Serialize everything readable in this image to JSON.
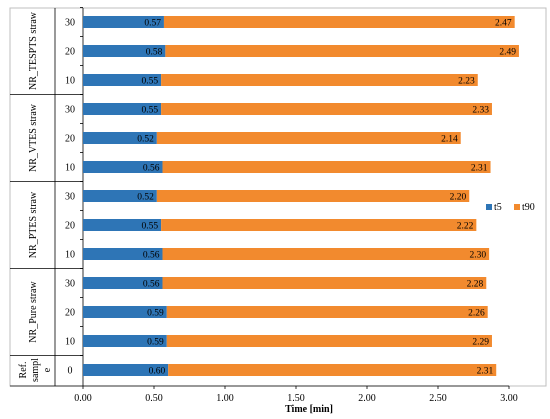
{
  "chart_data": {
    "type": "bar",
    "orientation": "horizontal",
    "stacked": true,
    "title": "",
    "xlabel": "Time [min]",
    "ylabel": "",
    "xlim": [
      0,
      3.0
    ],
    "x_ticks": [
      "0.00",
      "0.50",
      "1.00",
      "1.50",
      "2.00",
      "2.50",
      "3.00"
    ],
    "grid": false,
    "legend_position": "right",
    "groups": [
      {
        "label": "NR_TESPTS straw",
        "rows": [
          {
            "category": "30",
            "t5": 0.57,
            "t90": 2.47
          },
          {
            "category": "20",
            "t5": 0.58,
            "t90": 2.49
          },
          {
            "category": "10",
            "t5": 0.55,
            "t90": 2.23
          }
        ]
      },
      {
        "label": "NR_VTES straw",
        "rows": [
          {
            "category": "30",
            "t5": 0.55,
            "t90": 2.33
          },
          {
            "category": "20",
            "t5": 0.52,
            "t90": 2.14
          },
          {
            "category": "10",
            "t5": 0.56,
            "t90": 2.31
          }
        ]
      },
      {
        "label": "NR_PTES straw",
        "rows": [
          {
            "category": "30",
            "t5": 0.52,
            "t90": 2.2
          },
          {
            "category": "20",
            "t5": 0.55,
            "t90": 2.22
          },
          {
            "category": "10",
            "t5": 0.56,
            "t90": 2.3
          }
        ]
      },
      {
        "label": "NR_Pure straw",
        "rows": [
          {
            "category": "30",
            "t5": 0.56,
            "t90": 2.28
          },
          {
            "category": "20",
            "t5": 0.59,
            "t90": 2.26
          },
          {
            "category": "10",
            "t5": 0.59,
            "t90": 2.29
          }
        ]
      },
      {
        "label": "Ref. sampl e",
        "rows": [
          {
            "category": "0",
            "t5": 0.6,
            "t90": 2.31
          }
        ]
      }
    ],
    "series": [
      {
        "name": "t5",
        "key": "t5",
        "color": "#2e75b6"
      },
      {
        "name": "t90",
        "key": "t90",
        "color": "#f28a2e"
      }
    ]
  }
}
